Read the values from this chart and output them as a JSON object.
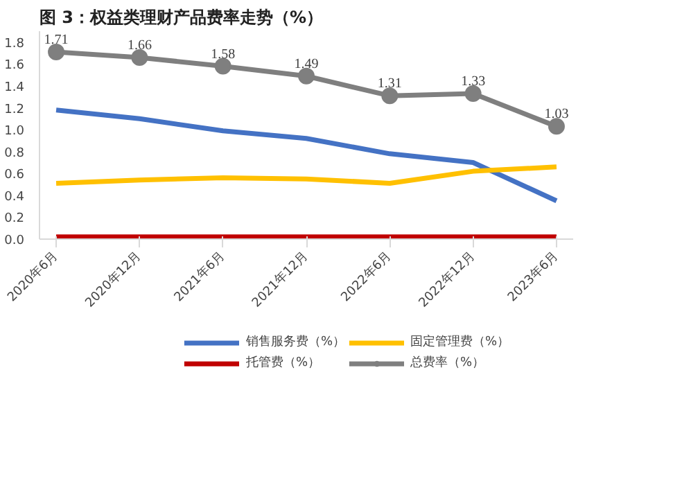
{
  "chart_data": {
    "type": "line",
    "title": "图 3：权益类理财产品费率走势（%）",
    "categories": [
      "2020年6月",
      "2020年12月",
      "2021年6月",
      "2021年12月",
      "2022年6月",
      "2022年12月",
      "2023年6月"
    ],
    "series": [
      {
        "name": "销售服务费（%）",
        "color": "#4472c4",
        "values": [
          1.18,
          1.1,
          0.99,
          0.92,
          0.78,
          0.7,
          0.35
        ]
      },
      {
        "name": "托管费（%）",
        "color": "#c00000",
        "values": [
          0.02,
          0.02,
          0.02,
          0.02,
          0.02,
          0.02,
          0.02
        ]
      },
      {
        "name": "固定管理费（%）",
        "color": "#ffc000",
        "values": [
          0.51,
          0.54,
          0.56,
          0.55,
          0.51,
          0.62,
          0.66
        ]
      },
      {
        "name": "总费率（%）",
        "color": "#7f7f7f",
        "marker": "circle",
        "values": [
          1.71,
          1.66,
          1.58,
          1.49,
          1.31,
          1.33,
          1.03
        ],
        "value_labels": [
          "1.71",
          "1.66",
          "1.58",
          "1.49",
          "1.31",
          "1.33",
          "1.03"
        ]
      }
    ],
    "ylim": [
      0,
      1.9
    ],
    "yticks": [
      {
        "value": 0,
        "label": "0.0"
      },
      0.2,
      0.4,
      0.6,
      0.8,
      {
        "value": 1,
        "label": "1.0"
      },
      1.2,
      1.4,
      1.6,
      1.8
    ],
    "grid": false,
    "legend": "bottom",
    "marker": "none",
    "line_style": "solid"
  }
}
